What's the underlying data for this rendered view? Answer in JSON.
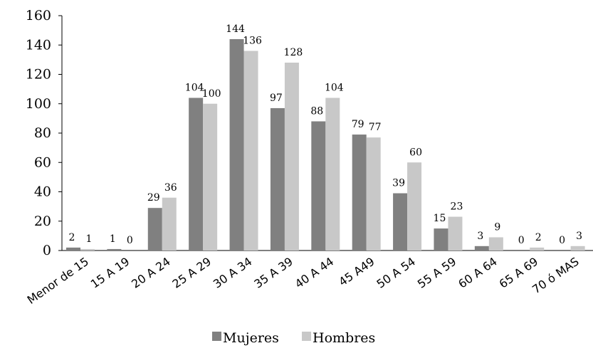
{
  "chart_data": {
    "type": "bar",
    "categories": [
      "Menor de 15",
      "15 A 19",
      "20 A 24",
      "25 A 29",
      "30 A 34",
      "35 A 39",
      "40 A 44",
      "45 A49",
      "50 A 54",
      "55 A 59",
      "60 A 64",
      "65 A 69",
      "70 ó MAS"
    ],
    "series": [
      {
        "name": "Mujeres",
        "values": [
          2,
          1,
          29,
          104,
          144,
          97,
          88,
          79,
          39,
          15,
          3,
          0,
          0
        ],
        "color": "#808080"
      },
      {
        "name": "Hombres",
        "values": [
          1,
          0,
          36,
          100,
          136,
          128,
          104,
          77,
          60,
          23,
          9,
          2,
          3
        ],
        "color": "#c8c8c8"
      }
    ],
    "ylim": [
      0,
      160
    ],
    "yticks": [
      0,
      20,
      40,
      60,
      80,
      100,
      120,
      140,
      160
    ],
    "grid": false,
    "legend_position": "bottom"
  }
}
